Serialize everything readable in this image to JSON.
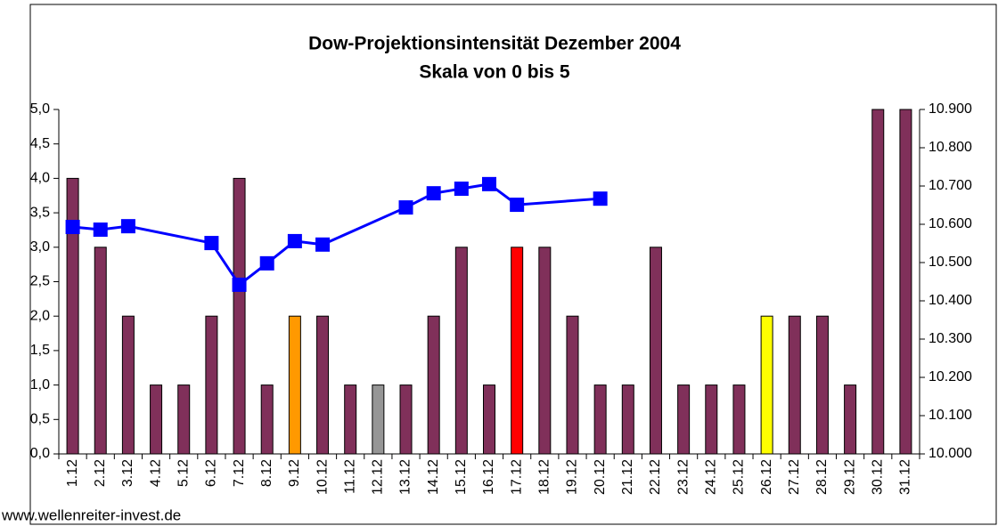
{
  "chart_data": {
    "type": "bar",
    "title": "Dow-Projektionsintensität Dezember 2004",
    "subtitle": "Skala von 0 bis 5",
    "annotation": "www.wellenreiter-invest.de",
    "categories": [
      "1.12",
      "2.12",
      "3.12",
      "4.12",
      "5.12",
      "6.12",
      "7.12",
      "8.12",
      "9.12",
      "10.12",
      "11.12",
      "12.12",
      "13.12",
      "14.12",
      "15.12",
      "16.12",
      "17.12",
      "18.12",
      "19.12",
      "20.12",
      "21.12",
      "22.12",
      "23.12",
      "24.12",
      "25.12",
      "26.12",
      "27.12",
      "28.12",
      "29.12",
      "30.12",
      "31.12"
    ],
    "series": [
      {
        "type": "bar",
        "colors": [
          "#80305a",
          "#80305a",
          "#80305a",
          "#80305a",
          "#80305a",
          "#80305a",
          "#80305a",
          "#80305a",
          "#ff9900",
          "#80305a",
          "#80305a",
          "#969696",
          "#80305a",
          "#80305a",
          "#80305a",
          "#80305a",
          "#ff0000",
          "#80305a",
          "#80305a",
          "#80305a",
          "#80305a",
          "#80305a",
          "#80305a",
          "#80305a",
          "#80305a",
          "#ffff00",
          "#80305a",
          "#80305a",
          "#80305a",
          "#80305a",
          "#80305a"
        ],
        "values": [
          4,
          3,
          2,
          1,
          1,
          2,
          4,
          1,
          2,
          2,
          1,
          1,
          1,
          2,
          3,
          1,
          3,
          3,
          2,
          1,
          1,
          3,
          1,
          1,
          1,
          2,
          2,
          2,
          1,
          5,
          5
        ]
      },
      {
        "type": "line",
        "axis": "y2",
        "color": "#0000ff",
        "values": [
          10593,
          10586,
          10595,
          null,
          null,
          10551,
          10442,
          10498,
          10556,
          10547,
          null,
          null,
          10644,
          10681,
          10693,
          10705,
          10651,
          null,
          null,
          10667,
          null,
          null,
          null,
          null,
          null,
          null,
          null,
          null,
          null,
          null,
          null
        ]
      }
    ],
    "ylim": [
      0,
      5
    ],
    "yticks": [
      {
        "value": 0,
        "label": "0,0"
      },
      {
        "value": 0.5,
        "label": "0,5"
      },
      {
        "value": 1,
        "label": "1,0"
      },
      {
        "value": 1.5,
        "label": "1,5"
      },
      {
        "value": 2,
        "label": "2,0"
      },
      {
        "value": 2.5,
        "label": "2,5"
      },
      {
        "value": 3,
        "label": "3,0"
      },
      {
        "value": 3.5,
        "label": "3,5"
      },
      {
        "value": 4,
        "label": "4,0"
      },
      {
        "value": 4.5,
        "label": "4,5"
      },
      {
        "value": 5,
        "label": "5,0"
      }
    ],
    "y2lim": [
      10000,
      10900
    ],
    "y2ticks": [
      {
        "value": 10000,
        "label": "10.000"
      },
      {
        "value": 10100,
        "label": "10.100"
      },
      {
        "value": 10200,
        "label": "10.200"
      },
      {
        "value": 10300,
        "label": "10.300"
      },
      {
        "value": 10400,
        "label": "10.400"
      },
      {
        "value": 10500,
        "label": "10.500"
      },
      {
        "value": 10600,
        "label": "10.600"
      },
      {
        "value": 10700,
        "label": "10.700"
      },
      {
        "value": 10800,
        "label": "10.800"
      },
      {
        "value": 10900,
        "label": "10.900"
      }
    ]
  }
}
